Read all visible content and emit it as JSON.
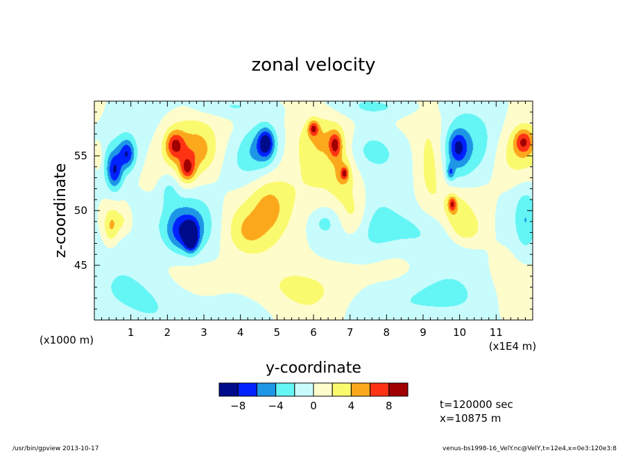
{
  "chart_data": {
    "type": "heatmap",
    "title": "zonal velocity",
    "xlabel": "y-coordinate",
    "ylabel": "z-coordinate",
    "x_unit_label": "(x1E4 m)",
    "y_unit_label": "(x1000 m)",
    "xlim": [
      0,
      12
    ],
    "ylim": [
      40,
      60
    ],
    "x_ticks": [
      "1",
      "2",
      "3",
      "4",
      "5",
      "6",
      "7",
      "8",
      "9",
      "10",
      "11"
    ],
    "y_ticks": [
      "45",
      "50",
      "55"
    ],
    "colorbar": {
      "levels": [
        -10,
        -8,
        -6,
        -4,
        -2,
        0,
        2,
        4,
        6,
        8,
        10
      ],
      "tick_labels": [
        "−8",
        "−4",
        "0",
        "4",
        "8"
      ],
      "colors": [
        "#000b8c",
        "#0022ff",
        "#1e96e6",
        "#64f5f5",
        "#c8fcfc",
        "#fffccc",
        "#fafa6e",
        "#fba81d",
        "#ff3314",
        "#a00000"
      ]
    },
    "annotations": [
      "t=120000 sec",
      "x=10875 m"
    ],
    "blobs": [
      {
        "y": 0.55,
        "z": 53.6,
        "v": -6.5,
        "sy": 0.15,
        "sz": 1.2
      },
      {
        "y": 0.9,
        "z": 55.2,
        "v": -6.0,
        "sy": 0.15,
        "sz": 0.9
      },
      {
        "y": 0.7,
        "z": 54.6,
        "v": -3.0,
        "sy": 0.4,
        "sz": 2.0
      },
      {
        "y": 0.45,
        "z": 48.5,
        "v": 4.0,
        "sy": 0.15,
        "sz": 1.2
      },
      {
        "y": 0.85,
        "z": 49.0,
        "v": 3.0,
        "sy": 0.25,
        "sz": 1.0
      },
      {
        "y": 1.2,
        "z": 49.3,
        "v": -2.5,
        "sy": 0.3,
        "sz": 1.5
      },
      {
        "y": 2.65,
        "z": 47.5,
        "v": -9.0,
        "sy": 0.12,
        "sz": 0.8
      },
      {
        "y": 2.45,
        "z": 48.0,
        "v": -6.0,
        "sy": 0.35,
        "sz": 1.3
      },
      {
        "y": 2.6,
        "z": 49.0,
        "v": -3.0,
        "sy": 0.55,
        "sz": 2.0
      },
      {
        "y": 2.2,
        "z": 56.0,
        "v": 6.0,
        "sy": 0.18,
        "sz": 0.9
      },
      {
        "y": 2.55,
        "z": 53.8,
        "v": 6.0,
        "sy": 0.15,
        "sz": 0.8
      },
      {
        "y": 2.45,
        "z": 55.0,
        "v": 3.5,
        "sy": 0.45,
        "sz": 2.3
      },
      {
        "y": 2.9,
        "z": 55.5,
        "v": 2.5,
        "sy": 0.3,
        "sz": 1.2
      },
      {
        "y": 2.05,
        "z": 52.0,
        "v": -2.5,
        "sy": 0.2,
        "sz": 1.2
      },
      {
        "y": 4.7,
        "z": 56.2,
        "v": -7.0,
        "sy": 0.15,
        "sz": 0.9
      },
      {
        "y": 4.55,
        "z": 55.5,
        "v": -4.0,
        "sy": 0.35,
        "sz": 1.5
      },
      {
        "y": 4.0,
        "z": 54.0,
        "v": -2.5,
        "sy": 0.4,
        "sz": 2.0
      },
      {
        "y": 4.2,
        "z": 48.0,
        "v": 3.0,
        "sy": 0.4,
        "sz": 1.5
      },
      {
        "y": 4.8,
        "z": 50.3,
        "v": 2.5,
        "sy": 0.3,
        "sz": 1.5
      },
      {
        "y": 6.0,
        "z": 57.5,
        "v": 6.0,
        "sy": 0.1,
        "sz": 0.5
      },
      {
        "y": 6.6,
        "z": 56.0,
        "v": 6.0,
        "sy": 0.12,
        "sz": 0.8
      },
      {
        "y": 6.3,
        "z": 56.5,
        "v": 3.0,
        "sy": 0.5,
        "sz": 1.5
      },
      {
        "y": 6.85,
        "z": 53.4,
        "v": 5.0,
        "sy": 0.07,
        "sz": 0.4
      },
      {
        "y": 6.8,
        "z": 53.5,
        "v": 3.0,
        "sy": 0.2,
        "sz": 1.3
      },
      {
        "y": 7.4,
        "z": 55.5,
        "v": -3.0,
        "sy": 0.6,
        "sz": 1.5
      },
      {
        "y": 6.3,
        "z": 49.0,
        "v": -2.5,
        "sy": 0.3,
        "sz": 1.0
      },
      {
        "y": 7.1,
        "z": 49.5,
        "v": 3.0,
        "sy": 0.3,
        "sz": 1.5
      },
      {
        "y": 7.6,
        "z": 49.0,
        "v": -2.5,
        "sy": 0.5,
        "sz": 2.5
      },
      {
        "y": 9.2,
        "z": 54.0,
        "v": 3.0,
        "sy": 0.3,
        "sz": 3.0
      },
      {
        "y": 9.95,
        "z": 55.8,
        "v": -5.0,
        "sy": 0.18,
        "sz": 1.0
      },
      {
        "y": 9.75,
        "z": 53.5,
        "v": -4.5,
        "sy": 0.08,
        "sz": 0.5
      },
      {
        "y": 9.9,
        "z": 54.5,
        "v": -3.0,
        "sy": 0.35,
        "sz": 2.5
      },
      {
        "y": 9.8,
        "z": 50.6,
        "v": 6.0,
        "sy": 0.08,
        "sz": 0.5
      },
      {
        "y": 9.9,
        "z": 50.0,
        "v": 3.0,
        "sy": 0.3,
        "sz": 1.5
      },
      {
        "y": 10.2,
        "z": 48.3,
        "v": 3.0,
        "sy": 0.3,
        "sz": 1.0
      },
      {
        "y": 11.75,
        "z": 56.3,
        "v": 6.0,
        "sy": 0.18,
        "sz": 0.8
      },
      {
        "y": 11.5,
        "z": 55.0,
        "v": 3.0,
        "sy": 0.5,
        "sz": 1.8
      },
      {
        "y": 10.5,
        "z": 55.5,
        "v": -2.5,
        "sy": 0.5,
        "sz": 2.0
      },
      {
        "y": 11.8,
        "z": 49.0,
        "v": -3.0,
        "sy": 0.2,
        "sz": 2.0
      },
      {
        "y": 0.1,
        "z": 55.0,
        "v": 3.0,
        "sy": 0.08,
        "sz": 0.8
      },
      {
        "y": 5.5,
        "z": 52.0,
        "v": 2.0,
        "sy": 1.5,
        "sz": 4.0
      },
      {
        "y": 8.5,
        "z": 48.0,
        "v": -2.5,
        "sy": 1.0,
        "sz": 1.5
      },
      {
        "y": 1.5,
        "z": 42.0,
        "v": -2.5,
        "sy": 1.5,
        "sz": 2.0
      },
      {
        "y": 9.0,
        "z": 42.0,
        "v": -2.5,
        "sy": 1.2,
        "sz": 1.5
      },
      {
        "y": 5.0,
        "z": 43.0,
        "v": 2.0,
        "sy": 2.0,
        "sz": 1.5
      },
      {
        "y": 3.5,
        "z": 59.5,
        "v": -2.5,
        "sy": 0.8,
        "sz": 0.7
      },
      {
        "y": 8.0,
        "z": 59.5,
        "v": -2.5,
        "sy": 0.8,
        "sz": 0.7
      }
    ]
  },
  "footer": {
    "left": "/usr/bin/gpview   2013-10-17",
    "right": "venus-bs1998-16_VelY.nc@VelY,t=12e4,x=0e3:120e3:8"
  }
}
